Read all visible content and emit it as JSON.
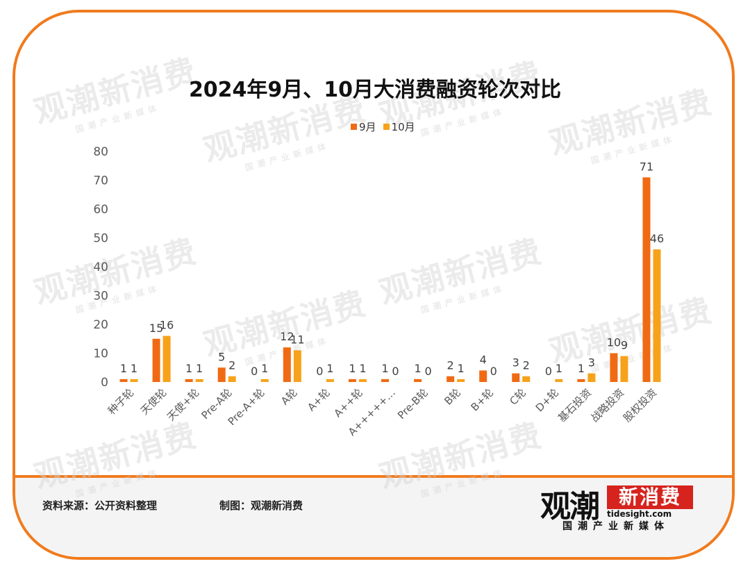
{
  "chart_data": {
    "type": "bar",
    "title": "2024年9月、10月大消费融资轮次对比",
    "categories": [
      "种子轮",
      "天使轮",
      "天使+轮",
      "Pre-A轮",
      "Pre-A+轮",
      "A轮",
      "A+轮",
      "A++轮",
      "A+++++…",
      "Pre-B轮",
      "B轮",
      "B+轮",
      "C轮",
      "D+轮",
      "基石投资",
      "战略投资",
      "股权投资"
    ],
    "series": [
      {
        "name": "9月",
        "values": [
          1,
          15,
          1,
          5,
          0,
          12,
          0,
          1,
          1,
          1,
          2,
          4,
          3,
          0,
          1,
          10,
          71
        ]
      },
      {
        "name": "10月",
        "values": [
          1,
          16,
          1,
          2,
          1,
          11,
          1,
          1,
          0,
          0,
          1,
          0,
          2,
          1,
          3,
          9,
          46
        ]
      }
    ],
    "ylim": [
      0,
      80
    ],
    "yticks": [
      0,
      10,
      20,
      30,
      40,
      50,
      60,
      70,
      80
    ],
    "colors": [
      "#F06A14",
      "#F7A21B"
    ],
    "legend": "top-center",
    "grid": false
  },
  "footer": {
    "source": "资料来源：公开资料整理",
    "maker": "制图：观潮新消费"
  },
  "logo": {
    "glyph": "观潮",
    "brand": "新消费",
    "site": "tidesight.com",
    "tagline": "国潮产业新媒体"
  },
  "watermark": {
    "main": "观潮新消费",
    "site": "tidesight.com",
    "tagline": "国潮产业新媒体"
  }
}
